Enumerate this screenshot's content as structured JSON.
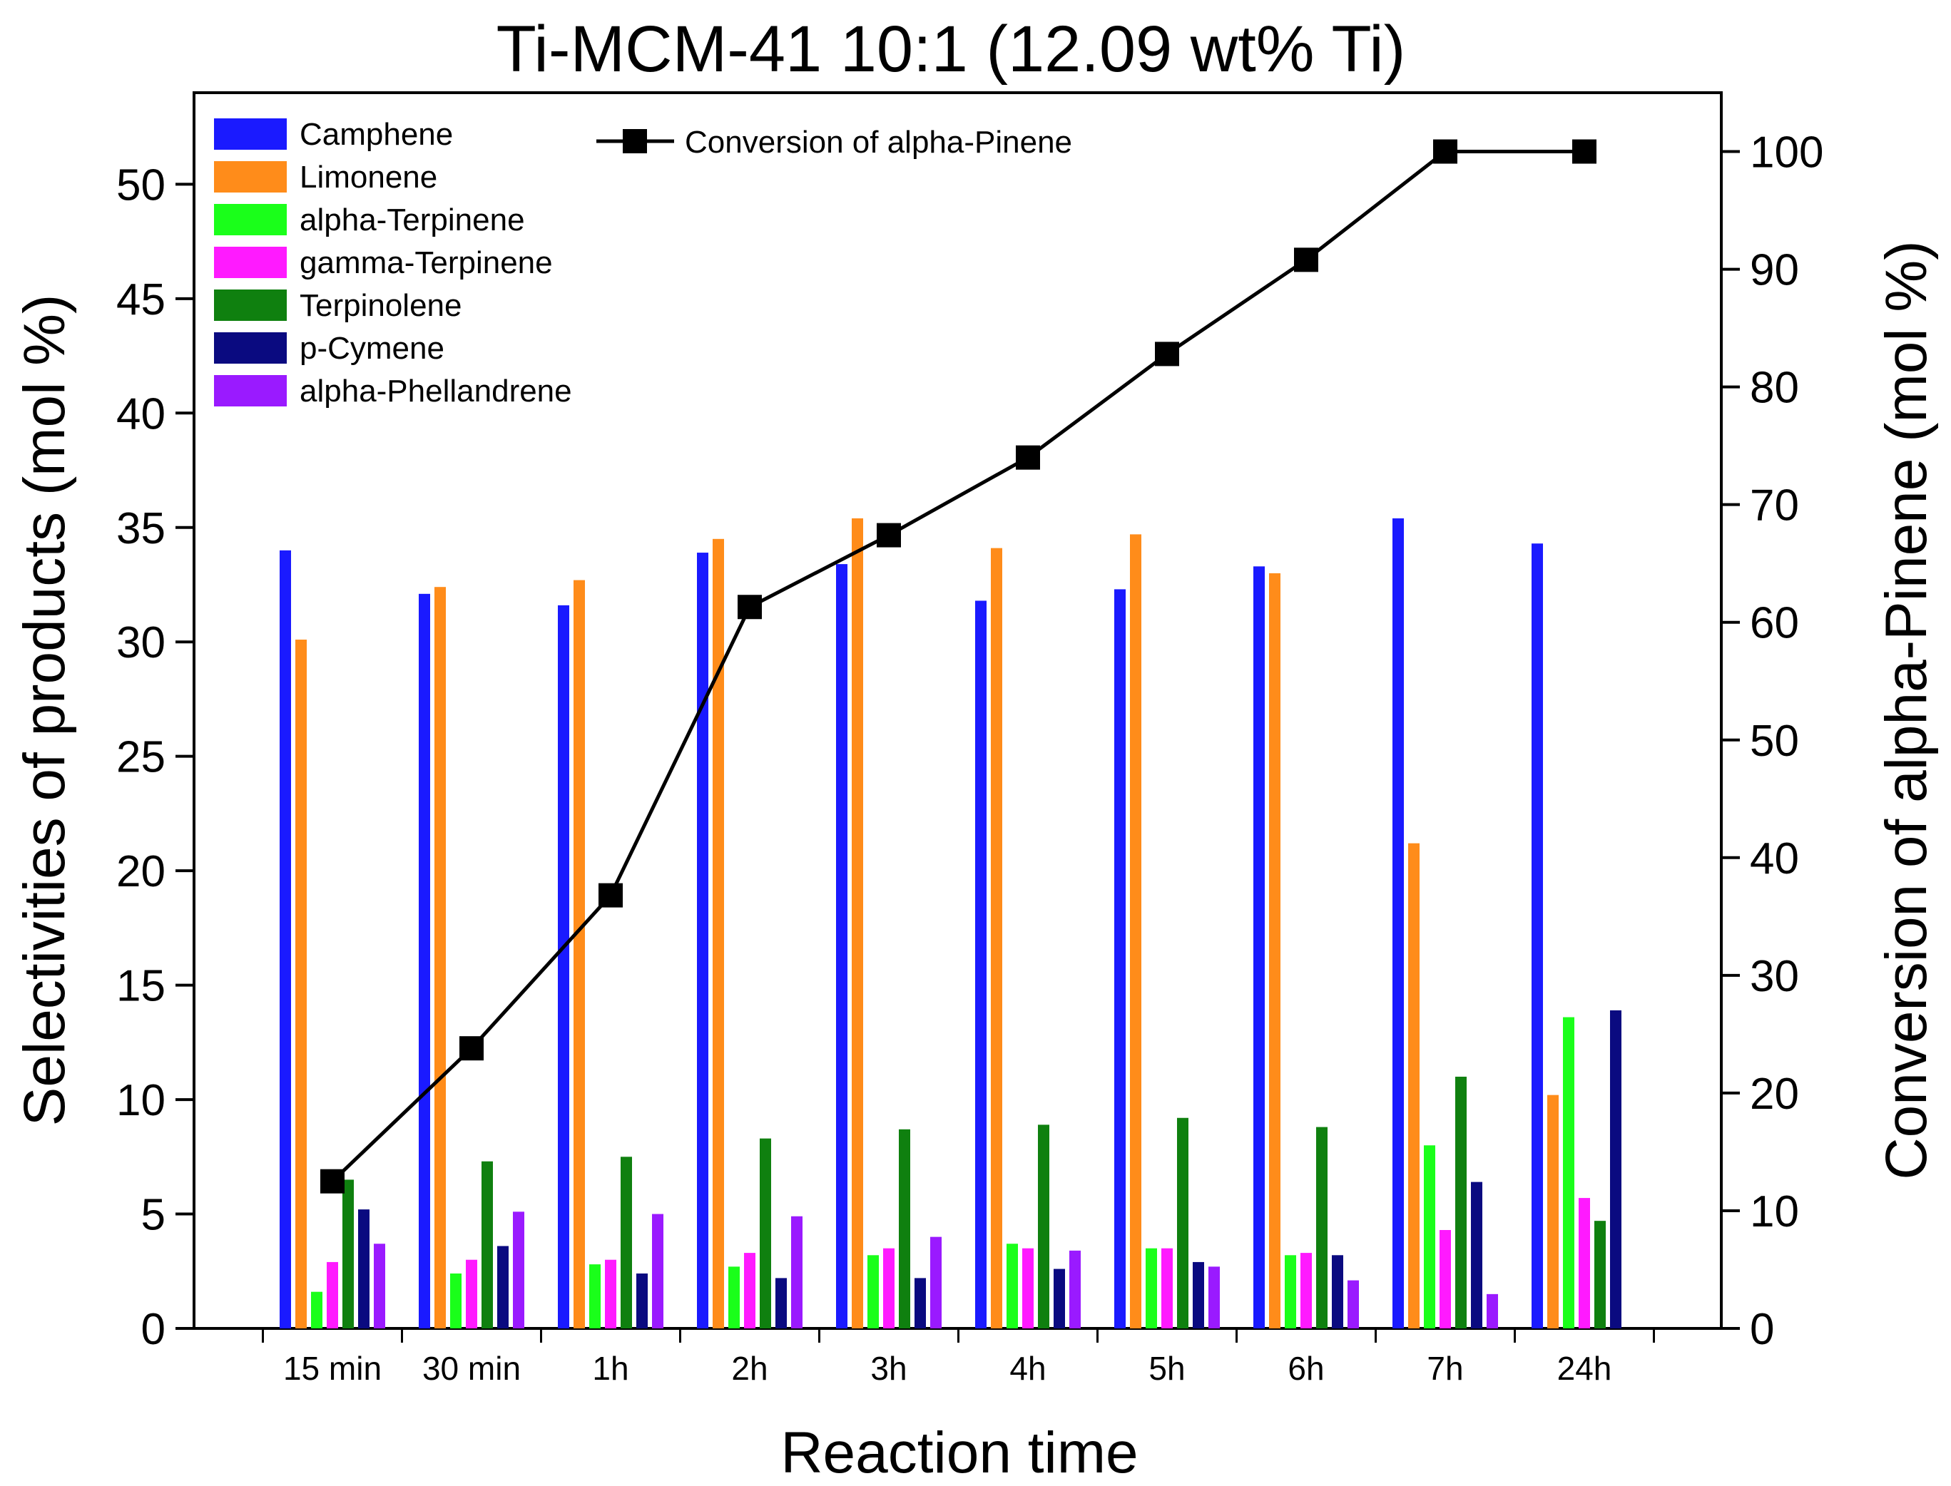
{
  "chart_data": {
    "type": "bar",
    "title": "Ti-MCM-41 10:1 (12.09 wt% Ti)",
    "xlabel": "Reaction time",
    "ylabel": "Selectivities of products (mol %)",
    "y2label": "Conversion of alpha-Pinene (mol %)",
    "ylim": [
      0,
      54
    ],
    "y2lim": [
      0,
      105
    ],
    "yticks": [
      0,
      5,
      10,
      15,
      20,
      25,
      30,
      35,
      40,
      45,
      50
    ],
    "y2ticks": [
      0,
      10,
      20,
      30,
      40,
      50,
      60,
      70,
      80,
      90,
      100
    ],
    "grid": false,
    "legend_position": "top-left",
    "categories": [
      "15 min",
      "30 min",
      "1h",
      "2h",
      "3h",
      "4h",
      "5h",
      "6h",
      "7h",
      "24h"
    ],
    "series": [
      {
        "name": "Camphene",
        "color": "#1a1aff",
        "values": [
          34.0,
          32.1,
          31.6,
          33.9,
          33.4,
          31.8,
          32.3,
          33.3,
          35.4,
          34.3
        ]
      },
      {
        "name": "Limonene",
        "color": "#ff8c1a",
        "values": [
          30.1,
          32.4,
          32.7,
          34.5,
          35.4,
          34.1,
          34.7,
          33.0,
          21.2,
          10.2
        ]
      },
      {
        "name": "alpha-Terpinene",
        "color": "#1aff1a",
        "values": [
          1.6,
          2.4,
          2.8,
          2.7,
          3.2,
          3.7,
          3.5,
          3.2,
          8.0,
          13.6
        ]
      },
      {
        "name": "gamma-Terpinene",
        "color": "#ff1aff",
        "values": [
          2.9,
          3.0,
          3.0,
          3.3,
          3.5,
          3.5,
          3.5,
          3.3,
          4.3,
          5.7
        ]
      },
      {
        "name": "Terpinolene",
        "color": "#0f800f",
        "values": [
          6.5,
          7.3,
          7.5,
          8.3,
          8.7,
          8.9,
          9.2,
          8.8,
          11.0,
          4.7
        ]
      },
      {
        "name": "p-Cymene",
        "color": "#0a0a80",
        "values": [
          5.2,
          3.6,
          2.4,
          2.2,
          2.2,
          2.6,
          2.9,
          3.2,
          6.4,
          13.9
        ]
      },
      {
        "name": "alpha-Phellandrene",
        "color": "#9a1aff",
        "values": [
          3.7,
          5.1,
          5.0,
          4.9,
          4.0,
          3.4,
          2.7,
          2.1,
          1.5,
          null
        ]
      }
    ],
    "line_series": {
      "name": "Conversion of alpha-Pinene",
      "color": "#000000",
      "axis": "right",
      "values": [
        12.5,
        23.8,
        36.8,
        61.3,
        67.4,
        74.0,
        82.8,
        90.8,
        100.0,
        100.0
      ]
    }
  }
}
